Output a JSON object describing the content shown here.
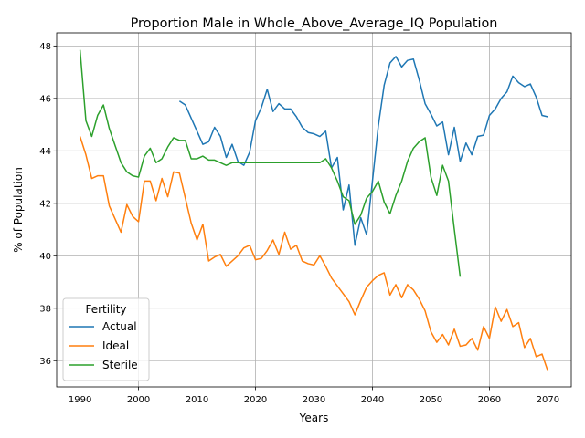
{
  "chart_data": {
    "type": "line",
    "title": "Proportion Male in Whole_Above_Average_IQ Population",
    "xlabel": "Years",
    "ylabel": "% of Population",
    "xlim": [
      1986,
      2074
    ],
    "ylim": [
      35,
      48.5
    ],
    "xticks": [
      1990,
      2000,
      2010,
      2020,
      2030,
      2040,
      2050,
      2060,
      2070
    ],
    "yticks": [
      36,
      38,
      40,
      42,
      44,
      46,
      48
    ],
    "grid": true,
    "legend": {
      "title": "Fertility",
      "position": "lower-left"
    },
    "series": [
      {
        "name": "Actual",
        "color": "#1f77b4",
        "x": [
          2007,
          2008,
          2009,
          2010,
          2011,
          2012,
          2013,
          2014,
          2015,
          2016,
          2017,
          2018,
          2019,
          2020,
          2021,
          2022,
          2023,
          2024,
          2025,
          2026,
          2027,
          2028,
          2029,
          2030,
          2031,
          2032,
          2033,
          2034,
          2035,
          2036,
          2037,
          2038,
          2039,
          2040,
          2041,
          2042,
          2043,
          2044,
          2045,
          2046,
          2047,
          2048,
          2049,
          2050,
          2051,
          2052,
          2053,
          2054,
          2055,
          2056,
          2057,
          2058,
          2059,
          2060,
          2061,
          2062,
          2063,
          2064,
          2065,
          2066,
          2067,
          2068,
          2069,
          2070
        ],
        "y": [
          45.9,
          45.75,
          45.25,
          44.75,
          44.25,
          44.35,
          44.9,
          44.55,
          43.75,
          44.25,
          43.6,
          43.45,
          43.95,
          45.15,
          45.65,
          46.35,
          45.5,
          45.8,
          45.6,
          45.6,
          45.3,
          44.9,
          44.7,
          44.65,
          44.55,
          44.75,
          43.35,
          43.75,
          41.75,
          42.7,
          40.4,
          41.45,
          40.8,
          42.85,
          44.95,
          46.5,
          47.35,
          47.6,
          47.2,
          47.45,
          47.5,
          46.7,
          45.8,
          45.4,
          44.95,
          45.1,
          43.85,
          44.9,
          43.6,
          44.3,
          43.85,
          44.55,
          44.6,
          45.35,
          45.6,
          46.0,
          46.25,
          46.85,
          46.6,
          46.45,
          46.55,
          46.05,
          45.35,
          45.3
        ]
      },
      {
        "name": "Ideal",
        "color": "#ff7f0e",
        "x": [
          1990,
          1991,
          1992,
          1993,
          1994,
          1995,
          1996,
          1997,
          1998,
          1999,
          2000,
          2001,
          2002,
          2003,
          2004,
          2005,
          2006,
          2007,
          2008,
          2009,
          2010,
          2011,
          2012,
          2013,
          2014,
          2015,
          2016,
          2017,
          2018,
          2019,
          2020,
          2021,
          2022,
          2023,
          2024,
          2025,
          2026,
          2027,
          2028,
          2029,
          2030,
          2031,
          2032,
          2033,
          2034,
          2035,
          2036,
          2037,
          2038,
          2039,
          2040,
          2041,
          2042,
          2043,
          2044,
          2045,
          2046,
          2047,
          2048,
          2049,
          2050,
          2051,
          2052,
          2053,
          2054,
          2055,
          2056,
          2057,
          2058,
          2059,
          2060,
          2061,
          2062,
          2063,
          2064,
          2065,
          2066,
          2067,
          2068,
          2069,
          2070
        ],
        "y": [
          44.55,
          43.85,
          42.95,
          43.05,
          43.05,
          41.9,
          41.4,
          40.9,
          41.95,
          41.5,
          41.3,
          42.85,
          42.85,
          42.1,
          42.95,
          42.25,
          43.2,
          43.15,
          42.2,
          41.25,
          40.6,
          41.2,
          39.8,
          39.95,
          40.05,
          39.6,
          39.8,
          40.0,
          40.3,
          40.4,
          39.85,
          39.9,
          40.2,
          40.6,
          40.05,
          40.9,
          40.25,
          40.4,
          39.8,
          39.7,
          39.65,
          40.0,
          39.6,
          39.15,
          38.85,
          38.55,
          38.25,
          37.75,
          38.3,
          38.8,
          39.05,
          39.25,
          39.35,
          38.5,
          38.9,
          38.4,
          38.9,
          38.7,
          38.35,
          37.9,
          37.1,
          36.7,
          37.0,
          36.6,
          37.2,
          36.55,
          36.6,
          36.85,
          36.4,
          37.3,
          36.85,
          38.05,
          37.5,
          37.95,
          37.3,
          37.45,
          36.5,
          36.85,
          36.15,
          36.25,
          35.6
        ]
      },
      {
        "name": "Sterile",
        "color": "#2ca02c",
        "x": [
          1990,
          1991,
          1992,
          1993,
          1994,
          1995,
          1996,
          1997,
          1998,
          1999,
          2000,
          2001,
          2002,
          2003,
          2004,
          2005,
          2006,
          2007,
          2008,
          2009,
          2010,
          2011,
          2012,
          2013,
          2014,
          2015,
          2016,
          2017,
          2018,
          2019,
          2020,
          2021,
          2022,
          2023,
          2024,
          2025,
          2026,
          2027,
          2028,
          2029,
          2030,
          2031,
          2032,
          2033,
          2034,
          2035,
          2036,
          2037,
          2038,
          2039,
          2040,
          2041,
          2042,
          2043,
          2044,
          2045,
          2046,
          2047,
          2048,
          2049,
          2050,
          2051,
          2052,
          2053,
          2054,
          2055
        ],
        "y": [
          47.85,
          45.15,
          44.55,
          45.35,
          45.75,
          44.85,
          44.2,
          43.55,
          43.2,
          43.05,
          43.0,
          43.8,
          44.1,
          43.55,
          43.7,
          44.15,
          44.5,
          44.4,
          44.4,
          43.7,
          43.7,
          43.8,
          43.65,
          43.65,
          43.55,
          43.45,
          43.55,
          43.55,
          43.55,
          43.55,
          43.55,
          43.55,
          43.55,
          43.55,
          43.55,
          43.55,
          43.55,
          43.55,
          43.55,
          43.55,
          43.55,
          43.55,
          43.7,
          43.35,
          42.85,
          42.25,
          42.1,
          41.2,
          41.55,
          42.2,
          42.45,
          42.85,
          42.05,
          41.6,
          42.3,
          42.85,
          43.6,
          44.1,
          44.35,
          44.5,
          43.0,
          42.3,
          43.45,
          42.85,
          41.0,
          39.2
        ]
      }
    ]
  }
}
